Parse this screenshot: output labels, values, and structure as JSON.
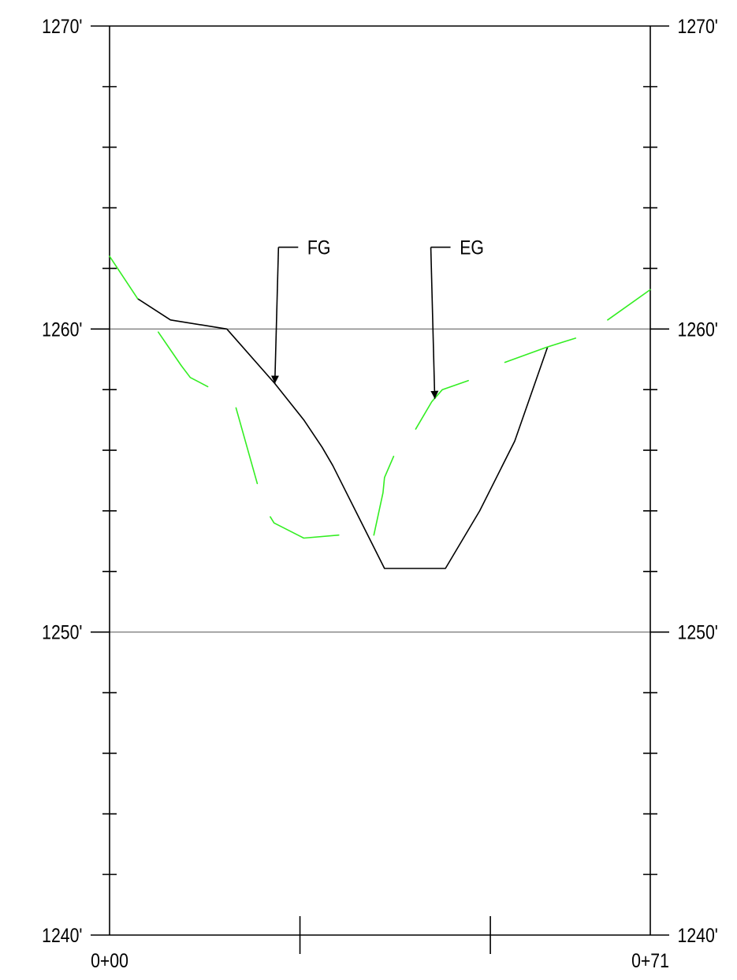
{
  "chart_data": {
    "type": "line",
    "title": "",
    "xlabel": "",
    "ylabel": "",
    "xlim": [
      0,
      71
    ],
    "ylim": [
      1240,
      1270
    ],
    "y_ticks": [
      {
        "value": 1270,
        "label": "1270'"
      },
      {
        "value": 1260,
        "label": "1260'"
      },
      {
        "value": 1250,
        "label": "1250'"
      },
      {
        "value": 1240,
        "label": "1240'"
      }
    ],
    "y_minor_tick_step": 2,
    "x_ticks": [
      {
        "value": 0,
        "label": "0+00"
      },
      {
        "value": 25,
        "label": ""
      },
      {
        "value": 50,
        "label": ""
      },
      {
        "value": 71,
        "label": "0+71"
      }
    ],
    "gridlines_y": [
      1260,
      1250
    ],
    "series": [
      {
        "name": "FG",
        "color": "#000000",
        "segments": [
          [
            [
              3.7,
              1261.0
            ],
            [
              8.0,
              1260.3
            ],
            [
              15.4,
              1260.0
            ],
            [
              21.7,
              1258.2
            ],
            [
              25.5,
              1257.0
            ],
            [
              27.9,
              1256.1
            ],
            [
              29.3,
              1255.5
            ],
            [
              36.1,
              1252.1
            ],
            [
              44.1,
              1252.1
            ],
            [
              48.6,
              1254.0
            ],
            [
              53.2,
              1256.3
            ],
            [
              57.5,
              1259.4
            ]
          ]
        ]
      },
      {
        "name": "EG",
        "color": "#33ee22",
        "segments": [
          [
            [
              0.0,
              1262.4
            ],
            [
              3.7,
              1261.0
            ]
          ],
          [
            [
              6.4,
              1259.9
            ],
            [
              9.4,
              1258.8
            ],
            [
              10.6,
              1258.4
            ],
            [
              12.9,
              1258.1
            ]
          ],
          [
            [
              16.6,
              1257.4
            ],
            [
              19.4,
              1254.9
            ]
          ],
          [
            [
              21.1,
              1253.8
            ],
            [
              21.6,
              1253.6
            ],
            [
              25.5,
              1253.1
            ],
            [
              30.1,
              1253.2
            ]
          ],
          [
            [
              34.7,
              1253.2
            ],
            [
              35.9,
              1254.6
            ],
            [
              36.1,
              1255.1
            ],
            [
              37.3,
              1255.8
            ]
          ],
          [
            [
              40.2,
              1256.7
            ],
            [
              42.3,
              1257.6
            ],
            [
              43.7,
              1258.0
            ],
            [
              47.1,
              1258.3
            ]
          ],
          [
            [
              51.9,
              1258.9
            ],
            [
              57.4,
              1259.4
            ],
            [
              59.9,
              1259.6
            ],
            [
              61.2,
              1259.7
            ]
          ],
          [
            [
              65.4,
              1260.3
            ],
            [
              71.0,
              1261.3
            ]
          ]
        ]
      }
    ],
    "annotations": [
      {
        "text": "FG",
        "target": [
          21.7,
          1258.2
        ],
        "label_at": [
          25.7,
          1262.7
        ]
      },
      {
        "text": "EG",
        "target": [
          42.7,
          1257.7
        ],
        "label_at": [
          45.7,
          1262.7
        ]
      }
    ],
    "colors": {
      "axis": "#000000",
      "grid": "#808080",
      "fg": "#000000",
      "eg": "#33ee22"
    }
  }
}
